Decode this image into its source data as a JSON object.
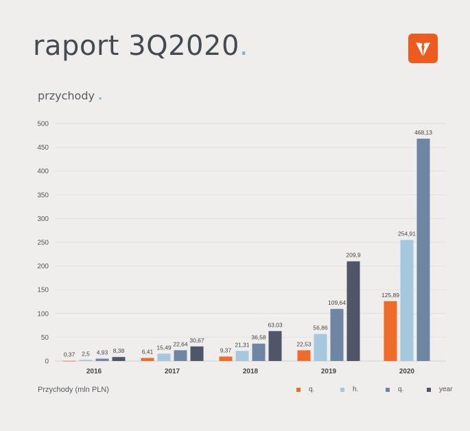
{
  "header": {
    "title": "raport 3Q2020",
    "title_dot": ".",
    "logo_icon": "brand-logo-icon"
  },
  "chart_title": "przychody",
  "chart_title_dot": ".",
  "caption": "Przychody (mln PLN)",
  "colors": {
    "q": "#ef6b2c",
    "h": "#a5c8de",
    "q3": "#6e86a1",
    "year": "#505667"
  },
  "chart_data": {
    "type": "bar",
    "categories": [
      "2016",
      "2017",
      "2018",
      "2019",
      "2020"
    ],
    "ylim": [
      0,
      500
    ],
    "yticks": [
      0,
      50,
      100,
      150,
      200,
      250,
      300,
      350,
      400,
      450,
      500
    ],
    "grid": true,
    "legend_position": "bottom-right",
    "series": [
      {
        "name": "q.",
        "color_key": "q",
        "values": [
          0.37,
          6.41,
          9.37,
          22.53,
          125.89
        ],
        "labels": [
          "0,37",
          "6,41",
          "9,37",
          "22,53",
          "125,89"
        ]
      },
      {
        "name": "h.",
        "color_key": "h",
        "values": [
          2.5,
          15.49,
          21.31,
          56.86,
          254.91
        ],
        "labels": [
          "2,5",
          "15,49",
          "21,31",
          "56,86",
          "254,91"
        ]
      },
      {
        "name": "q.",
        "color_key": "q3",
        "values": [
          4.93,
          22.64,
          36.58,
          109.64,
          468.13
        ],
        "labels": [
          "4,93",
          "22,64",
          "36,58",
          "109,64",
          "468,13"
        ]
      },
      {
        "name": "year",
        "color_key": "year",
        "values": [
          8.38,
          30.67,
          63.03,
          209.9,
          null
        ],
        "labels": [
          "8,38",
          "30,67",
          "63,03",
          "209,9",
          null
        ]
      }
    ]
  }
}
